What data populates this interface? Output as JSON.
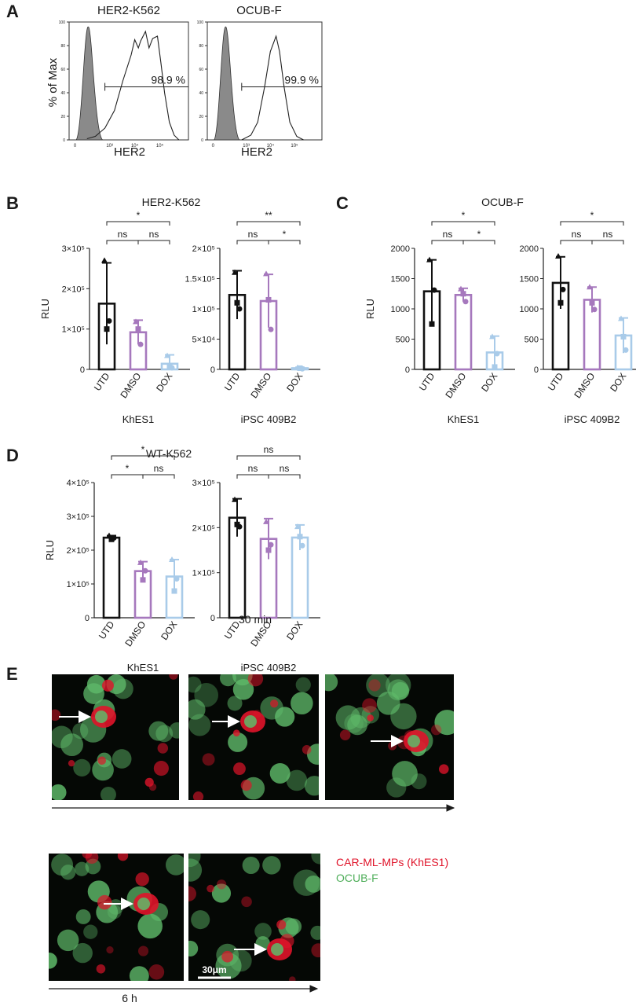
{
  "panels": {
    "A": "A",
    "B": "B",
    "C": "C",
    "D": "D",
    "E": "E"
  },
  "colors": {
    "UTD": "#111111",
    "DMSO": "#a678bd",
    "DOX": "#a9cbe9",
    "red": "#e0142a",
    "green": "#5fba6a"
  },
  "flow": {
    "ylabel": "% of Max",
    "yticks": [
      "0",
      "20",
      "40",
      "60",
      "80",
      "100"
    ],
    "xticks": [
      "0",
      "10³",
      "10⁴",
      "10⁵"
    ],
    "plots": [
      {
        "title": "HER2-K562",
        "gate_label": "98.9 %",
        "xlabel": "HER2"
      },
      {
        "title": "OCUB-F",
        "gate_label": "99.9 %",
        "xlabel": "HER2"
      }
    ]
  },
  "chart_data": [
    {
      "type": "bar",
      "panel": "B",
      "group_title": "HER2-K562",
      "subtitle": "KhES1",
      "ylabel": "RLU",
      "categories": [
        "UTD",
        "DMSO",
        "DOX"
      ],
      "values": [
        163000,
        92000,
        14000
      ],
      "errors": [
        101000,
        30000,
        22000
      ],
      "points": [
        [
          270000,
          100000,
          120000
        ],
        [
          118000,
          100000,
          62000
        ],
        [
          34000,
          6000,
          4000
        ]
      ],
      "ylim": [
        0,
        300000
      ],
      "yticks": [
        0,
        100000,
        200000,
        300000
      ],
      "ytick_labels": [
        "0",
        "1×10⁵",
        "2×10⁵",
        "3×10⁵"
      ],
      "sig": [
        {
          "pair": [
            0,
            1
          ],
          "label": "ns",
          "level": 0
        },
        {
          "pair": [
            1,
            2
          ],
          "label": "ns",
          "level": 0
        },
        {
          "pair": [
            0,
            2
          ],
          "label": "*",
          "level": 1
        }
      ]
    },
    {
      "type": "bar",
      "panel": "B",
      "subtitle": "iPSC 409B2",
      "ylabel": "",
      "categories": [
        "UTD",
        "DMSO",
        "DOX"
      ],
      "values": [
        123000,
        113000,
        2000
      ],
      "errors": [
        40000,
        44000,
        1500
      ],
      "points": [
        [
          160000,
          110000,
          100000
        ],
        [
          158000,
          115000,
          66000
        ],
        [
          3000,
          2000,
          1000
        ]
      ],
      "ylim": [
        0,
        200000
      ],
      "yticks": [
        0,
        50000,
        100000,
        150000,
        200000
      ],
      "ytick_labels": [
        "0",
        "5×10⁴",
        "1×10⁵",
        "1.5×10⁵",
        "2×10⁵"
      ],
      "sig": [
        {
          "pair": [
            0,
            1
          ],
          "label": "ns",
          "level": 0
        },
        {
          "pair": [
            1,
            2
          ],
          "label": "*",
          "level": 0
        },
        {
          "pair": [
            0,
            2
          ],
          "label": "**",
          "level": 1
        }
      ]
    },
    {
      "type": "bar",
      "panel": "C",
      "group_title": "OCUB-F",
      "subtitle": "KhES1",
      "ylabel": "RLU",
      "categories": [
        "UTD",
        "DMSO",
        "DOX"
      ],
      "values": [
        1290,
        1230,
        280
      ],
      "errors": [
        520,
        110,
        270
      ],
      "points": [
        [
          1810,
          750,
          1310
        ],
        [
          1330,
          1250,
          1120
        ],
        [
          540,
          40,
          260
        ]
      ],
      "ylim": [
        0,
        2000
      ],
      "yticks": [
        0,
        500,
        1000,
        1500,
        2000
      ],
      "ytick_labels": [
        "0",
        "500",
        "1000",
        "1500",
        "2000"
      ],
      "sig": [
        {
          "pair": [
            0,
            1
          ],
          "label": "ns",
          "level": 0
        },
        {
          "pair": [
            1,
            2
          ],
          "label": "*",
          "level": 0
        },
        {
          "pair": [
            0,
            2
          ],
          "label": "*",
          "level": 1
        }
      ]
    },
    {
      "type": "bar",
      "panel": "C",
      "subtitle": "iPSC 409B2",
      "ylabel": "",
      "categories": [
        "UTD",
        "DMSO",
        "DOX"
      ],
      "values": [
        1430,
        1150,
        560
      ],
      "errors": [
        430,
        210,
        290
      ],
      "points": [
        [
          1870,
          1100,
          1320
        ],
        [
          1360,
          1100,
          990
        ],
        [
          840,
          540,
          320
        ]
      ],
      "ylim": [
        0,
        2000
      ],
      "yticks": [
        0,
        500,
        1000,
        1500,
        2000
      ],
      "ytick_labels": [
        "0",
        "500",
        "1000",
        "1500",
        "2000"
      ],
      "sig": [
        {
          "pair": [
            0,
            1
          ],
          "label": "ns",
          "level": 0
        },
        {
          "pair": [
            1,
            2
          ],
          "label": "ns",
          "level": 0
        },
        {
          "pair": [
            0,
            2
          ],
          "label": "*",
          "level": 1
        }
      ]
    },
    {
      "type": "bar",
      "panel": "D",
      "group_title": "WT-K562",
      "subtitle": "KhES1",
      "ylabel": "RLU",
      "categories": [
        "UTD",
        "DMSO",
        "DOX"
      ],
      "values": [
        237000,
        138000,
        122000
      ],
      "errors": [
        6000,
        28000,
        50000
      ],
      "points": [
        [
          243000,
          232000,
          236000
        ],
        [
          163000,
          112000,
          139000
        ],
        [
          172000,
          79000,
          115000
        ]
      ],
      "ylim": [
        0,
        400000
      ],
      "yticks": [
        0,
        100000,
        200000,
        300000,
        400000
      ],
      "ytick_labels": [
        "0",
        "1×10⁵",
        "2×10⁵",
        "3×10⁵",
        "4×10⁵"
      ],
      "sig": [
        {
          "pair": [
            0,
            1
          ],
          "label": "*",
          "level": 0
        },
        {
          "pair": [
            1,
            2
          ],
          "label": "ns",
          "level": 0
        },
        {
          "pair": [
            0,
            2
          ],
          "label": "*",
          "level": 1
        }
      ]
    },
    {
      "type": "bar",
      "panel": "D",
      "subtitle": "iPSC 409B2",
      "ylabel": "",
      "categories": [
        "UTD",
        "DMSO",
        "DOX"
      ],
      "values": [
        222000,
        175000,
        178000
      ],
      "errors": [
        42000,
        45000,
        28000
      ],
      "points": [
        [
          262000,
          207000,
          202000
        ],
        [
          213000,
          150000,
          162000
        ],
        [
          202000,
          180000,
          160000
        ]
      ],
      "ylim": [
        0,
        300000
      ],
      "yticks": [
        0,
        100000,
        200000,
        300000
      ],
      "ytick_labels": [
        "0",
        "1×10⁵",
        "2×10⁵",
        "3×10⁵"
      ],
      "sig": [
        {
          "pair": [
            0,
            1
          ],
          "label": "ns",
          "level": 0
        },
        {
          "pair": [
            1,
            2
          ],
          "label": "ns",
          "level": 0
        },
        {
          "pair": [
            0,
            2
          ],
          "label": "ns",
          "level": 1
        }
      ]
    }
  ],
  "microscopy": {
    "time_top": "30 min",
    "time_bottom": "6 h",
    "scale_bar": "30μm",
    "legend": [
      {
        "label": "CAR-ML-MPs (KhES1)",
        "color": "#e0142a"
      },
      {
        "label": "OCUB-F",
        "color": "#4fae5a"
      }
    ]
  }
}
